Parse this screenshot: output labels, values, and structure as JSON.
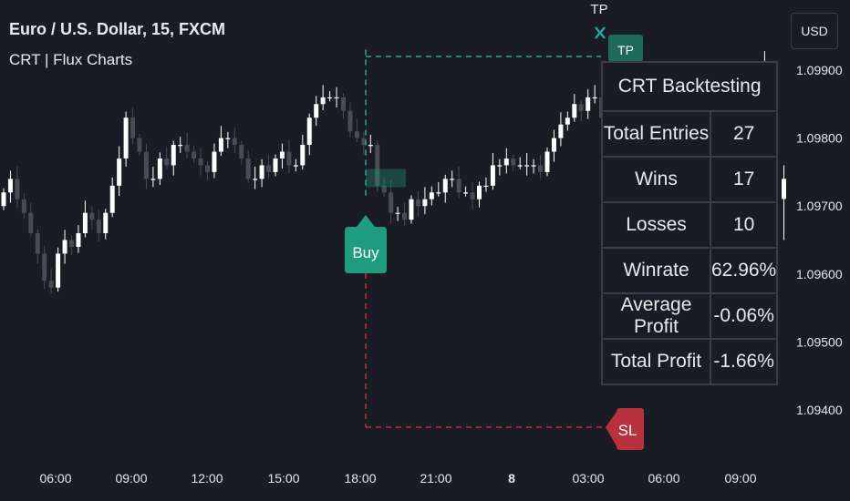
{
  "header": {
    "symbol_title": "Euro / U.S. Dollar, 15, FXCM",
    "indicator_title": "CRT | Flux Charts"
  },
  "currency_button": "USD",
  "backtest_table": {
    "title": "CRT Backtesting",
    "rows": [
      {
        "label": "Total Entries",
        "value": "27"
      },
      {
        "label": "Wins",
        "value": "17"
      },
      {
        "label": "Losses",
        "value": "10"
      },
      {
        "label": "Winrate",
        "value": "62.96%"
      },
      {
        "label": "Average Profit",
        "value": "-0.06%"
      },
      {
        "label": "Total Profit",
        "value": "-1.66%"
      }
    ]
  },
  "trade": {
    "buy_label": "Buy",
    "tp_label": "TP",
    "sl_label": "SL",
    "entry_price": 1.09725,
    "take_profit": 1.0991,
    "stop_loss": 1.0942
  },
  "colors": {
    "background": "#1a1c25",
    "bull_candle": "#ffffff",
    "bear_candle": "#4a4c55",
    "buy": "#1f9c7f",
    "tp_line": "#26a69a",
    "sl": "#b7323c",
    "axis_text": "#e6e7ea"
  },
  "chart_data": {
    "type": "candlestick",
    "title": "Euro / U.S. Dollar, 15, FXCM",
    "ylim": [
      1.0935,
      1.1005
    ],
    "y_ticks": [
      "1.09900",
      "1.09800",
      "1.09700",
      "1.09600",
      "1.09500",
      "1.09400"
    ],
    "x_ticks": [
      "06:00",
      "09:00",
      "12:00",
      "15:00",
      "18:00",
      "21:00",
      "8",
      "03:00",
      "06:00",
      "09:00"
    ],
    "series": [
      {
        "close": [
          1.0972,
          1.0974,
          1.0971,
          1.0969,
          1.0966,
          1.0963,
          1.0959,
          1.0958,
          1.0963,
          1.0965,
          1.0964,
          1.0966,
          1.0969,
          1.0968,
          1.0966,
          1.0969,
          1.0973,
          1.0977,
          1.0983,
          1.098,
          1.0978,
          1.0974,
          1.0974,
          1.0977,
          1.0976,
          1.0979,
          1.0979,
          1.0978,
          1.0977,
          1.0976,
          1.0975,
          1.0978,
          1.098,
          1.098,
          1.0979,
          1.0977,
          1.0974,
          1.0974,
          1.0976,
          1.0975,
          1.0977,
          1.0978,
          1.0976,
          1.0976,
          1.0979,
          1.0983,
          1.0985,
          1.0986,
          1.0986,
          1.0986,
          1.0984,
          1.0981,
          1.098,
          1.0979,
          1.0979,
          1.0973,
          1.0972,
          1.0969,
          1.0969,
          1.0968,
          1.0971,
          1.097,
          1.0971,
          1.0972,
          1.0972,
          1.0974,
          1.0974,
          1.0972,
          1.0972,
          1.0971,
          1.0973,
          1.0973,
          1.0976,
          1.0976,
          1.0977,
          1.0976,
          1.0976,
          1.0976,
          1.0976,
          1.0975,
          1.0978,
          1.098,
          1.0982,
          1.0983,
          1.0985,
          1.0984,
          1.0986,
          1.0986,
          1.0983,
          1.098,
          1.0979,
          1.0976,
          1.0977,
          1.0982,
          1.0986,
          1.0986,
          1.0987,
          1.0988,
          1.0986,
          1.0988,
          1.0987,
          1.0986,
          1.0988,
          1.0987,
          1.0986,
          1.0986,
          1.0986,
          1.0985,
          1.0986,
          1.0989,
          1.0985,
          1.0988,
          1.0991
        ]
      }
    ]
  }
}
